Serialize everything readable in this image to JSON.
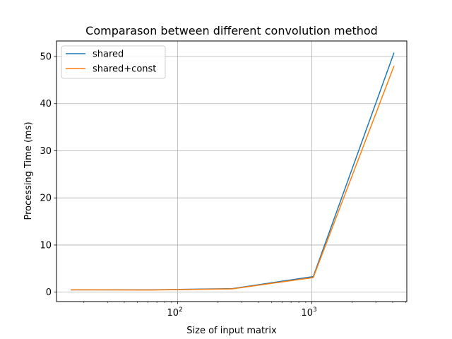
{
  "chart_data": {
    "type": "line",
    "title": "Comparason between different convolution method",
    "xlabel": "Size of input matrix",
    "ylabel": "Processing Time (ms)",
    "xscale": "log",
    "xlim": [
      12.5,
      5100
    ],
    "ylim": [
      -2,
      53.3
    ],
    "grid": true,
    "legend_position": "top-left",
    "x": [
      16,
      64,
      256,
      1024,
      4096
    ],
    "series": [
      {
        "name": "shared",
        "color": "#1f77b4",
        "values": [
          0.5,
          0.5,
          0.75,
          3.3,
          50.8
        ]
      },
      {
        "name": "shared+const",
        "color": "#ff7f0e",
        "values": [
          0.5,
          0.45,
          0.7,
          3.1,
          48.0
        ]
      }
    ],
    "y_ticks": [
      0,
      10,
      20,
      30,
      40,
      50
    ],
    "y_tick_labels": [
      "0",
      "10",
      "20",
      "30",
      "40",
      "50"
    ],
    "x_major_ticks": [
      100,
      1000
    ],
    "x_tick_labels": [
      {
        "base": "10",
        "exp": "2"
      },
      {
        "base": "10",
        "exp": "3"
      }
    ]
  }
}
